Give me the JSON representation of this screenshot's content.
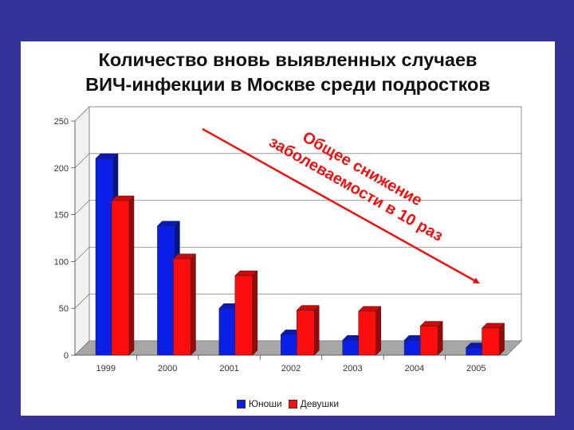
{
  "title": {
    "line1": "Количество вновь выявленных случаев",
    "line2": "ВИЧ-инфекции в Москве среди подростков"
  },
  "annotation": {
    "line1": "Общее снижение",
    "line2": "заболеваемости в 10 раз",
    "color": "#ee1111"
  },
  "colors": {
    "boys": "#0a1fe6",
    "girls": "#ff0d0d",
    "background": "#333399",
    "floor": "#a6a6a6"
  },
  "chart_data": {
    "type": "bar",
    "categories": [
      "1999",
      "2000",
      "2001",
      "2002",
      "2003",
      "2004",
      "2005"
    ],
    "series": [
      {
        "name": "Юноши",
        "values": [
          210,
          138,
          50,
          22,
          16,
          16,
          8
        ]
      },
      {
        "name": "Девушки",
        "values": [
          165,
          103,
          85,
          48,
          47,
          31,
          29
        ]
      }
    ],
    "ylim": [
      0,
      250
    ],
    "yticks": [
      0,
      50,
      100,
      150,
      200,
      250
    ],
    "grid": true,
    "legend": "bottom",
    "style": "3d"
  }
}
